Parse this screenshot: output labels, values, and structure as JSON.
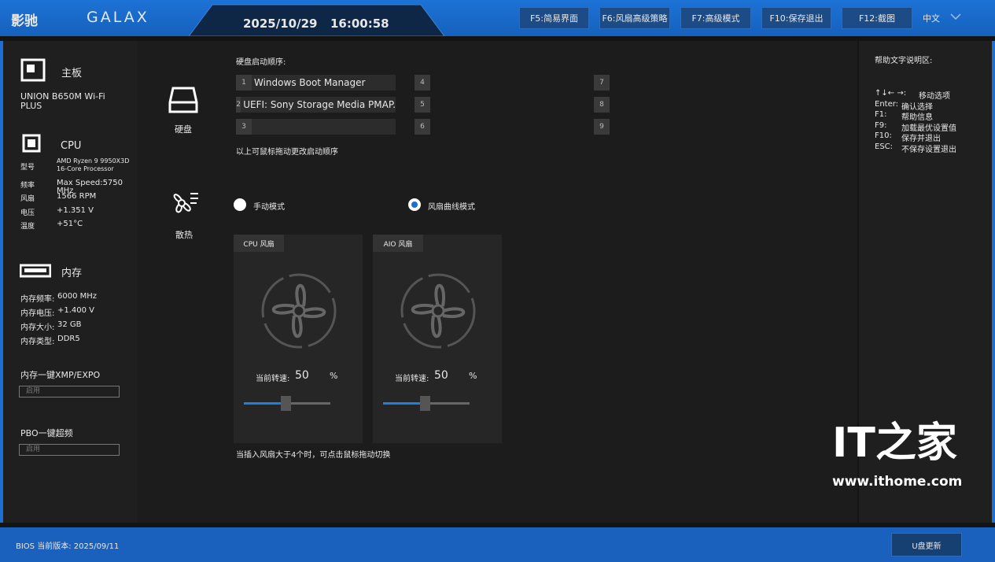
{
  "header": {
    "brand_cn": "影驰",
    "brand_en": "GALAX",
    "date": "2025/10/29",
    "time": "16:00:58",
    "buttons": [
      "F5:简易界面",
      "F6:风扇高级策略",
      "F7:高级模式",
      "F10:保存退出",
      "F12:截图"
    ],
    "language": "中文"
  },
  "system": {
    "motherboard": {
      "title": "主板",
      "model": "UNION B650M Wi-Fi PLUS"
    },
    "cpu": {
      "title": "CPU",
      "rows": [
        {
          "label": "型号",
          "value": "AMD Ryzen 9 9950X3D 16-Core Processor"
        },
        {
          "label": "频率",
          "value": "Max Speed:5750 MHz"
        },
        {
          "label": "风扇",
          "value": "1566 RPM"
        },
        {
          "label": "电压",
          "value": "+1.351 V"
        },
        {
          "label": "温度",
          "value": "+51°C"
        }
      ]
    },
    "memory": {
      "title": "内存",
      "rows": [
        {
          "label": "内存频率:",
          "value": "6000 MHz"
        },
        {
          "label": "内存电压:",
          "value": "+1.400 V"
        },
        {
          "label": "内存大小:",
          "value": "32 GB"
        },
        {
          "label": "内存类型:",
          "value": "DDR5"
        }
      ]
    },
    "xmp": {
      "label": "内存一键XMP/EXPO",
      "value": "启用"
    },
    "pbo": {
      "label": "PBO一键超频",
      "value": "启用"
    }
  },
  "boot": {
    "icon_label": "硬盘",
    "title": "硬盘启动顺序:",
    "slots": [
      {
        "index": 1,
        "name": "Windows Boot Manager"
      },
      {
        "index": 2,
        "name": "UEFI: Sony Storage Media PMAP."
      },
      {
        "index": 3
      },
      {
        "index": 4
      },
      {
        "index": 5
      },
      {
        "index": 6
      },
      {
        "index": 7
      },
      {
        "index": 8
      },
      {
        "index": 9
      }
    ],
    "hint": "以上可鼠标拖动更改启动顺序"
  },
  "cooling": {
    "icon_label": "散热",
    "modes": [
      {
        "label": "手动模式",
        "selected": false
      },
      {
        "label": "风扇曲线模式",
        "selected": true
      }
    ],
    "fans": [
      {
        "name": "CPU 风扇",
        "speed_label": "当前转速:",
        "speed": 50,
        "unit": "%"
      },
      {
        "name": "AIO 风扇",
        "speed_label": "当前转速:",
        "speed": 50,
        "unit": "%"
      }
    ],
    "hint": "当插入风扇大于4个时，可点击鼠标拖动切换"
  },
  "help": {
    "title": "帮助文字说明区:",
    "rows": [
      {
        "key": "↑↓← →:",
        "desc": "移动选项"
      },
      {
        "key": "Enter:",
        "desc": "确认选择"
      },
      {
        "key": "F1:",
        "desc": "帮助信息"
      },
      {
        "key": "F9:",
        "desc": "加载最优设置值"
      },
      {
        "key": "F10:",
        "desc": "保存并退出"
      },
      {
        "key": "ESC:",
        "desc": "不保存设置退出"
      }
    ]
  },
  "watermark": {
    "logo": "IT之家",
    "url": "www.ithome.com"
  },
  "footer": {
    "bios_version": "BIOS 当前版本: 2025/09/11",
    "update_button": "U盘更新"
  }
}
